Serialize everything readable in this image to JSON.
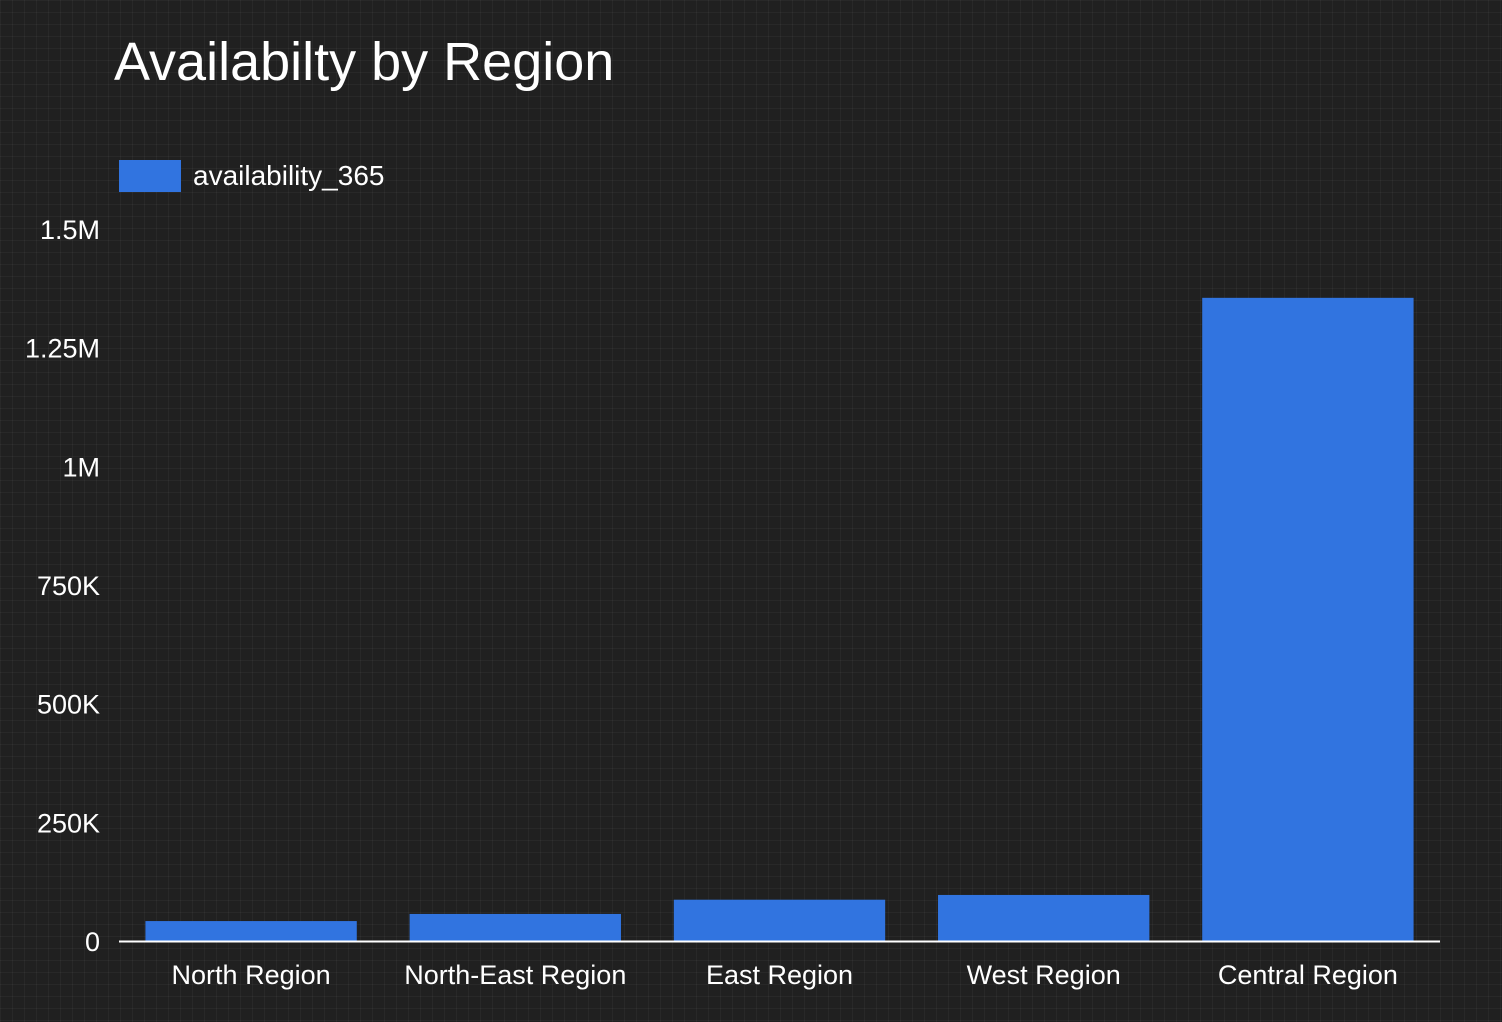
{
  "chart_data": {
    "type": "bar",
    "title": "Availabilty by Region",
    "xlabel": "",
    "ylabel": "",
    "categories": [
      "North Region",
      "North-East Region",
      "East Region",
      "West Region",
      "Central Region"
    ],
    "series": [
      {
        "name": "availability_365",
        "values": [
          42000,
          57000,
          87000,
          97000,
          1355000
        ],
        "color": "#3174e0"
      }
    ],
    "ylim": [
      0,
      1500000
    ],
    "y_ticks": [
      {
        "value": 0,
        "label": "0"
      },
      {
        "value": 250000,
        "label": "250K"
      },
      {
        "value": 500000,
        "label": "500K"
      },
      {
        "value": 750000,
        "label": "750K"
      },
      {
        "value": 1000000,
        "label": "1M"
      },
      {
        "value": 1250000,
        "label": "1.25M"
      },
      {
        "value": 1500000,
        "label": "1.5M"
      }
    ],
    "grid": false,
    "legend_position": "top-left"
  },
  "colors": {
    "background": "#202020",
    "bar": "#3174e0",
    "axis": "#ffffff",
    "text": "#ffffff"
  }
}
